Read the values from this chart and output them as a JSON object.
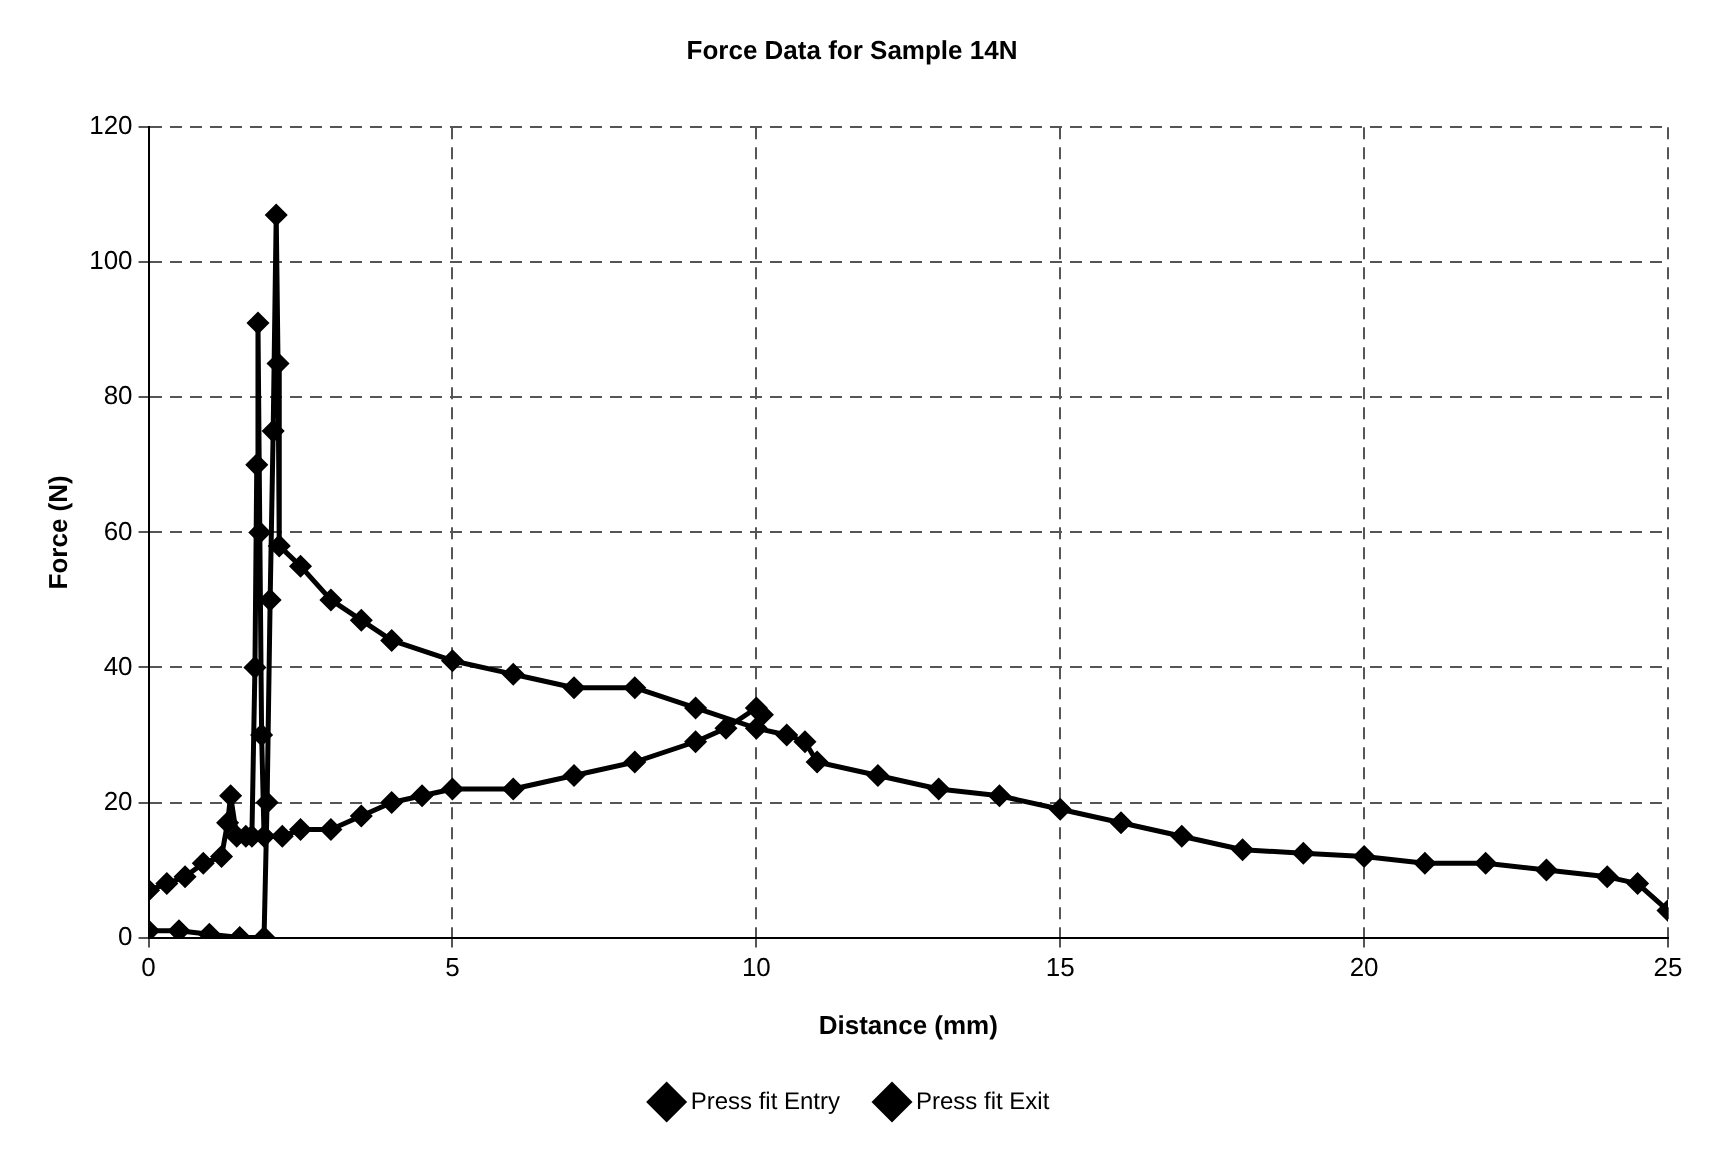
{
  "chart_data": {
    "type": "line",
    "title": "Force Data for Sample 14N",
    "xlabel": "Distance (mm)",
    "ylabel": "Force (N)",
    "xlim": [
      0,
      25
    ],
    "xticks": [
      0,
      5,
      10,
      15,
      20,
      25
    ],
    "ylim": [
      0,
      120
    ],
    "yticks": [
      0,
      20,
      40,
      60,
      80,
      100,
      120
    ],
    "grid": true,
    "legend": "bottom",
    "marker": "diamond",
    "line_style": "solid",
    "series": [
      {
        "name": "Press fit Entry",
        "color": "#000000",
        "x": [
          0,
          0.3,
          0.6,
          0.9,
          1.2,
          1.3,
          1.35,
          1.45,
          1.6,
          1.7,
          1.75,
          1.78,
          1.8,
          1.83,
          1.86,
          1.9,
          2.2,
          2.5,
          3,
          3.5,
          4,
          4.5,
          5,
          6,
          7,
          8,
          9,
          9.5,
          10,
          10.1
        ],
        "values": [
          7,
          8,
          9,
          11,
          12,
          17,
          21,
          15,
          15,
          15,
          40,
          70,
          91,
          60,
          30,
          15,
          15,
          16,
          16,
          18,
          20,
          21,
          22,
          22,
          24,
          26,
          29,
          31,
          34,
          33
        ]
      },
      {
        "name": "Press fit Exit",
        "color": "#000000",
        "x": [
          0,
          0.5,
          1,
          1.5,
          1.9,
          1.95,
          2,
          2.05,
          2.1,
          2.13,
          2.15,
          2.5,
          3,
          3.5,
          4,
          5,
          6,
          7,
          8,
          9,
          10,
          10.5,
          10.8,
          11,
          12,
          13,
          14,
          15,
          16,
          17,
          18,
          19,
          20,
          21,
          22,
          23,
          24,
          24.5,
          25
        ],
        "values": [
          1,
          1,
          0.5,
          0,
          0,
          20,
          50,
          75,
          107,
          85,
          58,
          55,
          50,
          47,
          44,
          41,
          39,
          37,
          37,
          34,
          31,
          30,
          29,
          26,
          24,
          22,
          21,
          19,
          17,
          15,
          13,
          12.5,
          12,
          11,
          11,
          10,
          9,
          8,
          4
        ]
      }
    ]
  }
}
